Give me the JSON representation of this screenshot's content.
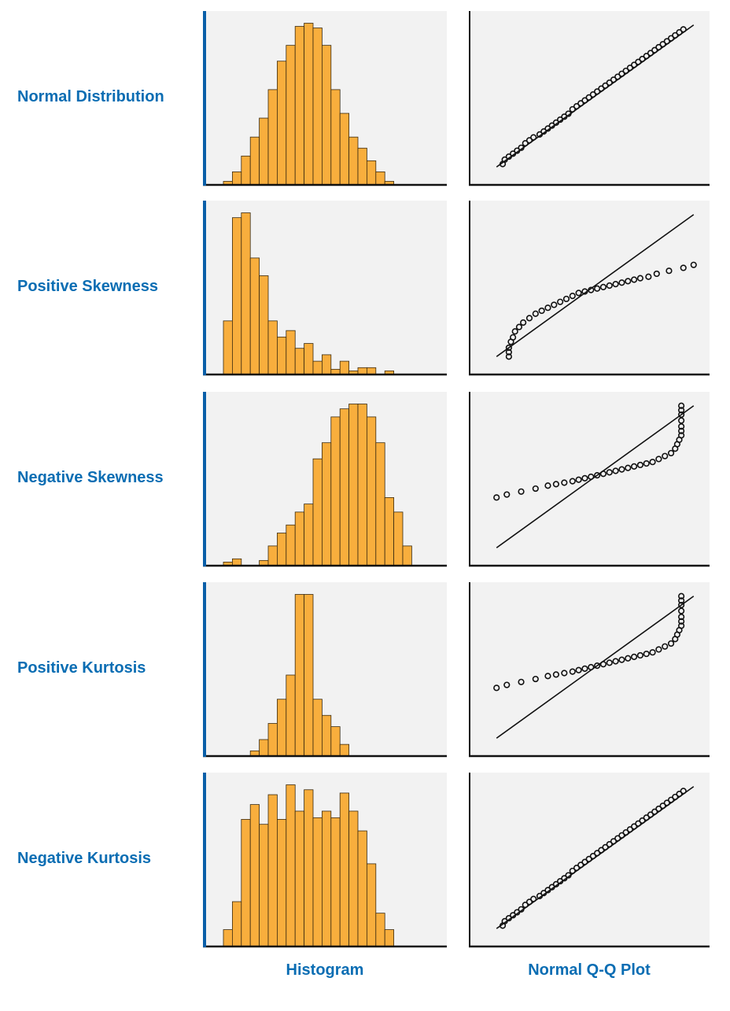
{
  "colors": {
    "label": "#0a6db3",
    "bar_fill": "#f8ae3d",
    "bar_stroke": "#3a2a10",
    "panel_bg": "#f2f2f2",
    "axis_accent": "#0a5fa8",
    "axis": "#111111",
    "marker": "#111111"
  },
  "column_labels": {
    "histogram": "Histogram",
    "qq": "Normal Q-Q Plot"
  },
  "chart_data": [
    {
      "type": "bar",
      "row_label": "Normal Distribution",
      "histogram": {
        "values": [
          2,
          8,
          18,
          30,
          42,
          60,
          78,
          88,
          100,
          102,
          99,
          88,
          60,
          45,
          30,
          23,
          15,
          8,
          2
        ]
      },
      "qq": {
        "reference_line": [
          [
            0.02,
            0.02
          ],
          [
            0.98,
            0.98
          ]
        ],
        "points": [
          [
            0.05,
            0.04
          ],
          [
            0.06,
            0.07
          ],
          [
            0.08,
            0.09
          ],
          [
            0.1,
            0.11
          ],
          [
            0.12,
            0.13
          ],
          [
            0.14,
            0.15
          ],
          [
            0.16,
            0.18
          ],
          [
            0.18,
            0.2
          ],
          [
            0.2,
            0.22
          ],
          [
            0.23,
            0.24
          ],
          [
            0.25,
            0.26
          ],
          [
            0.27,
            0.28
          ],
          [
            0.29,
            0.3
          ],
          [
            0.31,
            0.32
          ],
          [
            0.33,
            0.34
          ],
          [
            0.35,
            0.36
          ],
          [
            0.37,
            0.38
          ],
          [
            0.39,
            0.41
          ],
          [
            0.41,
            0.43
          ],
          [
            0.43,
            0.45
          ],
          [
            0.45,
            0.47
          ],
          [
            0.47,
            0.49
          ],
          [
            0.49,
            0.51
          ],
          [
            0.51,
            0.53
          ],
          [
            0.53,
            0.55
          ],
          [
            0.55,
            0.57
          ],
          [
            0.57,
            0.59
          ],
          [
            0.59,
            0.61
          ],
          [
            0.61,
            0.63
          ],
          [
            0.63,
            0.65
          ],
          [
            0.65,
            0.67
          ],
          [
            0.67,
            0.69
          ],
          [
            0.69,
            0.71
          ],
          [
            0.71,
            0.73
          ],
          [
            0.73,
            0.75
          ],
          [
            0.75,
            0.77
          ],
          [
            0.77,
            0.79
          ],
          [
            0.79,
            0.81
          ],
          [
            0.81,
            0.83
          ],
          [
            0.83,
            0.85
          ],
          [
            0.85,
            0.87
          ],
          [
            0.87,
            0.89
          ],
          [
            0.89,
            0.91
          ],
          [
            0.91,
            0.93
          ],
          [
            0.93,
            0.95
          ]
        ]
      }
    },
    {
      "type": "bar",
      "row_label": "Positive Skewness",
      "histogram": {
        "values": [
          33,
          97,
          100,
          72,
          61,
          33,
          23,
          27,
          16,
          19,
          8,
          12,
          3,
          8,
          2,
          4,
          4,
          0,
          2
        ]
      },
      "qq": {
        "reference_line": [
          [
            0.02,
            0.02
          ],
          [
            0.98,
            0.98
          ]
        ],
        "points": [
          [
            0.08,
            0.02
          ],
          [
            0.08,
            0.05
          ],
          [
            0.08,
            0.08
          ],
          [
            0.09,
            0.12
          ],
          [
            0.1,
            0.15
          ],
          [
            0.11,
            0.19
          ],
          [
            0.13,
            0.22
          ],
          [
            0.15,
            0.25
          ],
          [
            0.18,
            0.28
          ],
          [
            0.21,
            0.31
          ],
          [
            0.24,
            0.33
          ],
          [
            0.27,
            0.35
          ],
          [
            0.3,
            0.37
          ],
          [
            0.33,
            0.39
          ],
          [
            0.36,
            0.41
          ],
          [
            0.39,
            0.43
          ],
          [
            0.42,
            0.45
          ],
          [
            0.45,
            0.46
          ],
          [
            0.48,
            0.47
          ],
          [
            0.51,
            0.48
          ],
          [
            0.54,
            0.49
          ],
          [
            0.57,
            0.5
          ],
          [
            0.6,
            0.51
          ],
          [
            0.63,
            0.52
          ],
          [
            0.66,
            0.53
          ],
          [
            0.69,
            0.54
          ],
          [
            0.72,
            0.55
          ],
          [
            0.76,
            0.56
          ],
          [
            0.8,
            0.58
          ],
          [
            0.86,
            0.6
          ],
          [
            0.93,
            0.62
          ],
          [
            0.98,
            0.64
          ]
        ]
      }
    },
    {
      "type": "bar",
      "row_label": "Negative Skewness",
      "histogram": {
        "values": [
          2,
          4,
          0,
          0,
          3,
          12,
          20,
          25,
          33,
          38,
          66,
          76,
          92,
          97,
          100,
          100,
          92,
          76,
          42,
          33,
          12
        ]
      },
      "qq": {
        "reference_line": [
          [
            0.02,
            0.02
          ],
          [
            0.98,
            0.98
          ]
        ],
        "points": [
          [
            0.02,
            0.36
          ],
          [
            0.07,
            0.38
          ],
          [
            0.14,
            0.4
          ],
          [
            0.21,
            0.42
          ],
          [
            0.27,
            0.44
          ],
          [
            0.31,
            0.45
          ],
          [
            0.35,
            0.46
          ],
          [
            0.39,
            0.47
          ],
          [
            0.42,
            0.48
          ],
          [
            0.45,
            0.49
          ],
          [
            0.48,
            0.5
          ],
          [
            0.51,
            0.51
          ],
          [
            0.54,
            0.52
          ],
          [
            0.57,
            0.53
          ],
          [
            0.6,
            0.54
          ],
          [
            0.63,
            0.55
          ],
          [
            0.66,
            0.56
          ],
          [
            0.69,
            0.57
          ],
          [
            0.72,
            0.58
          ],
          [
            0.75,
            0.59
          ],
          [
            0.78,
            0.6
          ],
          [
            0.81,
            0.62
          ],
          [
            0.84,
            0.64
          ],
          [
            0.87,
            0.66
          ],
          [
            0.89,
            0.69
          ],
          [
            0.9,
            0.72
          ],
          [
            0.91,
            0.75
          ],
          [
            0.92,
            0.78
          ],
          [
            0.92,
            0.81
          ],
          [
            0.92,
            0.84
          ],
          [
            0.92,
            0.88
          ],
          [
            0.92,
            0.92
          ],
          [
            0.92,
            0.95
          ],
          [
            0.92,
            0.98
          ]
        ]
      }
    },
    {
      "type": "bar",
      "row_label": "Positive Kurtosis",
      "histogram": {
        "values": [
          0,
          0,
          0,
          3,
          10,
          20,
          35,
          50,
          100,
          100,
          35,
          25,
          18,
          7,
          0,
          0,
          0,
          0,
          0
        ]
      },
      "qq": {
        "reference_line": [
          [
            0.02,
            0.02
          ],
          [
            0.98,
            0.98
          ]
        ],
        "points": [
          [
            0.02,
            0.36
          ],
          [
            0.07,
            0.38
          ],
          [
            0.14,
            0.4
          ],
          [
            0.21,
            0.42
          ],
          [
            0.27,
            0.44
          ],
          [
            0.31,
            0.45
          ],
          [
            0.35,
            0.46
          ],
          [
            0.39,
            0.47
          ],
          [
            0.42,
            0.48
          ],
          [
            0.45,
            0.49
          ],
          [
            0.48,
            0.5
          ],
          [
            0.51,
            0.51
          ],
          [
            0.54,
            0.52
          ],
          [
            0.57,
            0.53
          ],
          [
            0.6,
            0.54
          ],
          [
            0.63,
            0.55
          ],
          [
            0.66,
            0.56
          ],
          [
            0.69,
            0.57
          ],
          [
            0.72,
            0.58
          ],
          [
            0.75,
            0.59
          ],
          [
            0.78,
            0.6
          ],
          [
            0.81,
            0.62
          ],
          [
            0.84,
            0.64
          ],
          [
            0.87,
            0.66
          ],
          [
            0.89,
            0.69
          ],
          [
            0.9,
            0.72
          ],
          [
            0.91,
            0.75
          ],
          [
            0.92,
            0.78
          ],
          [
            0.92,
            0.81
          ],
          [
            0.92,
            0.84
          ],
          [
            0.92,
            0.88
          ],
          [
            0.92,
            0.92
          ],
          [
            0.92,
            0.95
          ],
          [
            0.92,
            0.98
          ]
        ]
      }
    },
    {
      "type": "bar",
      "row_label": "Negative Kurtosis",
      "histogram": {
        "values": [
          10,
          27,
          77,
          86,
          74,
          92,
          77,
          98,
          82,
          95,
          78,
          82,
          78,
          93,
          82,
          70,
          50,
          20,
          10
        ]
      },
      "qq": {
        "reference_line": [
          [
            0.02,
            0.02
          ],
          [
            0.98,
            0.98
          ]
        ],
        "points": [
          [
            0.05,
            0.04
          ],
          [
            0.06,
            0.07
          ],
          [
            0.08,
            0.09
          ],
          [
            0.1,
            0.11
          ],
          [
            0.12,
            0.13
          ],
          [
            0.14,
            0.15
          ],
          [
            0.16,
            0.18
          ],
          [
            0.18,
            0.2
          ],
          [
            0.2,
            0.22
          ],
          [
            0.23,
            0.24
          ],
          [
            0.25,
            0.26
          ],
          [
            0.27,
            0.28
          ],
          [
            0.29,
            0.3
          ],
          [
            0.31,
            0.32
          ],
          [
            0.33,
            0.34
          ],
          [
            0.35,
            0.36
          ],
          [
            0.37,
            0.38
          ],
          [
            0.39,
            0.41
          ],
          [
            0.41,
            0.43
          ],
          [
            0.43,
            0.45
          ],
          [
            0.45,
            0.47
          ],
          [
            0.47,
            0.49
          ],
          [
            0.49,
            0.51
          ],
          [
            0.51,
            0.53
          ],
          [
            0.53,
            0.55
          ],
          [
            0.55,
            0.57
          ],
          [
            0.57,
            0.59
          ],
          [
            0.59,
            0.61
          ],
          [
            0.61,
            0.63
          ],
          [
            0.63,
            0.65
          ],
          [
            0.65,
            0.67
          ],
          [
            0.67,
            0.69
          ],
          [
            0.69,
            0.71
          ],
          [
            0.71,
            0.73
          ],
          [
            0.73,
            0.75
          ],
          [
            0.75,
            0.77
          ],
          [
            0.77,
            0.79
          ],
          [
            0.79,
            0.81
          ],
          [
            0.81,
            0.83
          ],
          [
            0.83,
            0.85
          ],
          [
            0.85,
            0.87
          ],
          [
            0.87,
            0.89
          ],
          [
            0.89,
            0.91
          ],
          [
            0.91,
            0.93
          ],
          [
            0.93,
            0.95
          ]
        ]
      }
    }
  ]
}
